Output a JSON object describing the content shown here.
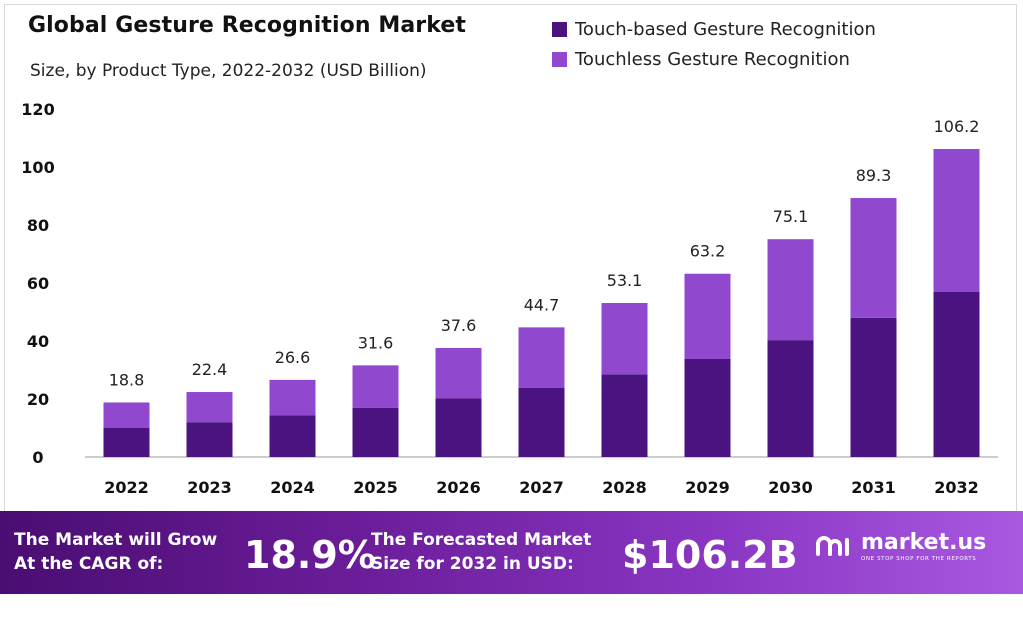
{
  "title": "Global Gesture Recognition Market",
  "subtitle": "Size, by Product Type, 2022-2032 (USD Billion)",
  "colors": {
    "touch": "#4a1380",
    "touchless": "#9048cf",
    "axis": "#9a9a9a",
    "text": "#111111"
  },
  "legend": [
    {
      "label": "Touch-based Gesture Recognition",
      "color": "#4a1380"
    },
    {
      "label": "Touchless Gesture Recognition",
      "color": "#9048cf"
    }
  ],
  "chart_data": {
    "type": "bar",
    "stacked": true,
    "title": "Global Gesture Recognition Market",
    "subtitle": "Size, by Product Type, 2022-2032 (USD Billion)",
    "categories": [
      "2022",
      "2023",
      "2024",
      "2025",
      "2026",
      "2027",
      "2028",
      "2029",
      "2030",
      "2031",
      "2032"
    ],
    "series": [
      {
        "name": "Touch-based Gesture Recognition",
        "values": [
          10.0,
          12.0,
          14.3,
          17.0,
          20.2,
          23.9,
          28.5,
          33.8,
          40.3,
          48.0,
          56.9
        ]
      },
      {
        "name": "Touchless Gesture Recognition",
        "values": [
          8.8,
          10.4,
          12.3,
          14.6,
          17.4,
          20.8,
          24.6,
          29.4,
          34.8,
          41.3,
          49.3
        ]
      }
    ],
    "totals": [
      18.8,
      22.4,
      26.6,
      31.6,
      37.6,
      44.7,
      53.1,
      63.2,
      75.1,
      89.3,
      106.2
    ],
    "total_labels": [
      "18.8",
      "22.4",
      "26.6",
      "31.6",
      "37.6",
      "44.7",
      "53.1",
      "63.2",
      "75.1",
      "89.3",
      "106.2"
    ],
    "yticks": [
      "0",
      "20",
      "40",
      "60",
      "80",
      "100",
      "120"
    ],
    "ylim": [
      0,
      120
    ],
    "xlabel": "",
    "ylabel": "",
    "grid": false,
    "legend_position": "top-right"
  },
  "footer": {
    "grow_line1": "The Market will Grow",
    "grow_line2": "At the CAGR of:",
    "cagr": "18.9%",
    "forecast_line1": "The Forecasted Market",
    "forecast_line2": "Size for 2032 in USD:",
    "forecast_value": "$106.2B",
    "logo_name": "market.us",
    "logo_tagline": "ONE STOP SHOP FOR THE REPORTS"
  }
}
